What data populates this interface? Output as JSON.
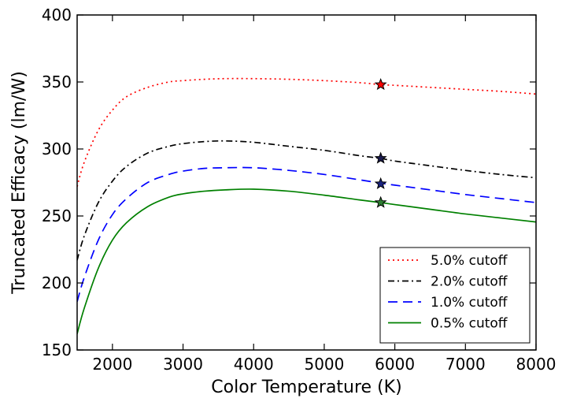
{
  "chart_data": {
    "type": "line",
    "title": "",
    "xlabel": "Color Temperature (K)",
    "ylabel": "Truncated Efficacy (lm/W)",
    "xlim": [
      1500,
      8000
    ],
    "ylim": [
      150,
      400
    ],
    "xticks": [
      2000,
      3000,
      4000,
      5000,
      6000,
      7000,
      8000
    ],
    "yticks": [
      150,
      200,
      250,
      300,
      350,
      400
    ],
    "grid": false,
    "legend_position": "lower-right",
    "x": [
      1500,
      1600,
      1800,
      2000,
      2200,
      2500,
      2800,
      3000,
      3300,
      3600,
      4000,
      4500,
      5000,
      5500,
      5800,
      6000,
      6500,
      7000,
      7500,
      8000
    ],
    "series": [
      {
        "name": "5.0% cutoff",
        "color": "#ff0000",
        "dash": "dotted",
        "values": [
          272,
          290,
          314,
          329,
          339,
          346,
          350,
          351,
          352,
          352.5,
          352.5,
          352,
          351,
          349.5,
          348,
          347.5,
          346,
          344.5,
          343,
          341
        ],
        "marker": {
          "x": 5800,
          "y": 348,
          "symbol": "star",
          "color": "#ff0000"
        }
      },
      {
        "name": "2.0% cutoff",
        "color": "#000000",
        "dash": "dashdot",
        "values": [
          217,
          235,
          260,
          276,
          287,
          297,
          302,
          304,
          305.5,
          306,
          305,
          302,
          299,
          295,
          293,
          291,
          287.5,
          284,
          281,
          278.5
        ],
        "marker": {
          "x": 5800,
          "y": 293,
          "symbol": "star",
          "color": "#1a1a4d"
        }
      },
      {
        "name": "1.0% cutoff",
        "color": "#0000ff",
        "dash": "dashed",
        "values": [
          186,
          204,
          232,
          251,
          263,
          275,
          281,
          283.5,
          285.5,
          286,
          286,
          284,
          281,
          277,
          274.5,
          273,
          269.5,
          266,
          263,
          260
        ],
        "marker": {
          "x": 5800,
          "y": 274,
          "symbol": "star",
          "color": "#1a237e"
        }
      },
      {
        "name": "0.5% cutoff",
        "color": "#008000",
        "dash": "solid",
        "values": [
          162,
          181,
          211,
          232,
          245,
          257,
          264,
          266.5,
          268.5,
          269.5,
          270,
          268.5,
          265.5,
          262,
          260,
          258.5,
          255,
          251.5,
          248.5,
          245.5
        ],
        "marker": {
          "x": 5800,
          "y": 260,
          "symbol": "star",
          "color": "#2e7d32"
        }
      }
    ]
  }
}
